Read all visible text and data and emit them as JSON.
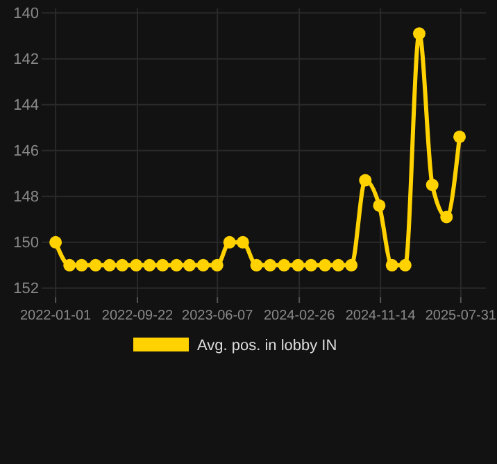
{
  "chart_data": {
    "type": "line",
    "x": [
      "2022-01-01",
      "2022-02-15",
      "2022-03-26",
      "2022-05-10",
      "2022-06-24",
      "2022-08-04",
      "2022-09-18",
      "2022-10-31",
      "2022-12-12",
      "2023-01-26",
      "2023-03-09",
      "2023-04-22",
      "2023-06-06",
      "2023-07-16",
      "2023-08-28",
      "2023-10-11",
      "2023-11-24",
      "2024-01-08",
      "2024-02-22",
      "2024-04-04",
      "2024-05-19",
      "2024-07-01",
      "2024-08-12",
      "2024-09-26",
      "2024-11-10",
      "2024-12-21",
      "2025-02-02",
      "2025-03-19",
      "2025-04-30",
      "2025-06-15",
      "2025-07-27"
    ],
    "series": [
      {
        "name": "Avg. pos. in lobby IN",
        "color": "#ffd200",
        "values": [
          150,
          151,
          151,
          151,
          151,
          151,
          151,
          151,
          151,
          151,
          151,
          151,
          151,
          150,
          150,
          151,
          151,
          151,
          151,
          151,
          151,
          151,
          151,
          147.3,
          148.4,
          151,
          151,
          140.9,
          147.5,
          148.9,
          145.4
        ]
      }
    ],
    "xlim": [
      "2021-11-17",
      "2025-10-20"
    ],
    "xticks": [
      "2022-01-01",
      "2022-09-22",
      "2023-06-07",
      "2024-02-26",
      "2024-11-14",
      "2025-07-31"
    ],
    "ylim": [
      152.4,
      139.8
    ],
    "yticks": [
      140,
      142,
      144,
      146,
      148,
      150,
      152
    ],
    "grid": true,
    "legend": "bottom",
    "marker": "circle",
    "line_style": "solid"
  }
}
